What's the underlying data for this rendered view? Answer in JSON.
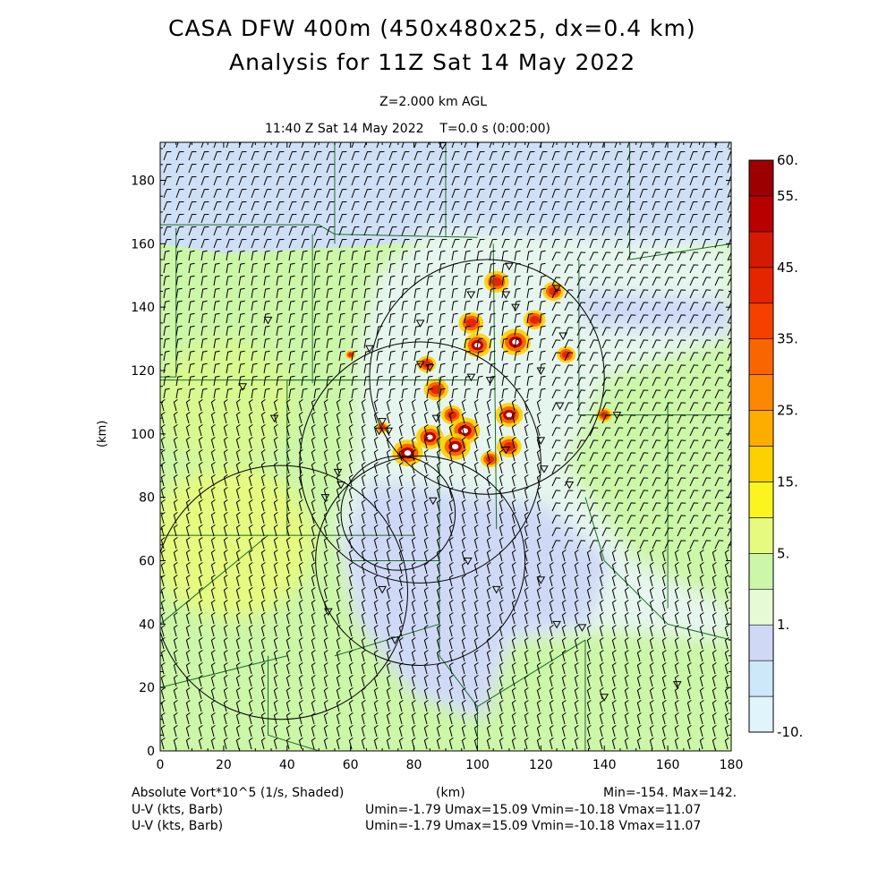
{
  "header": {
    "title_line1": "CASA DFW 400m (450x480x25, dx=0.4 km)",
    "title_line2": "Analysis for 11Z Sat 14 May 2022",
    "level": "Z=2.000 km AGL",
    "time": "11:40 Z Sat 14 May 2022    T=0.0 s (0:00:00)"
  },
  "footer": {
    "field_label": "Absolute Vort*10^5 (1/s, Shaded)",
    "xunit": "(km)",
    "minmax": "Min=-154. Max=142.",
    "wind_label_1": "U-V (kts, Barb)",
    "wind_label_2": "U-V (kts, Barb)",
    "wind_stats_1": "Umin=-1.79 Umax=15.09 Vmin=-10.18 Vmax=11.07",
    "wind_stats_2": "Umin=-1.79 Umax=15.09 Vmin=-10.18 Vmax=11.07"
  },
  "colorbar": {
    "colors": [
      "#e0f4fb",
      "#cde8f8",
      "#cfd9f6",
      "#e6fad6",
      "#ccf6a8",
      "#e6fa80",
      "#fbf41f",
      "#fdd000",
      "#fdac00",
      "#fb8800",
      "#f96600",
      "#f54000",
      "#e52500",
      "#d41a00",
      "#b90000",
      "#9c0000"
    ],
    "labels": [
      {
        "text": "60.",
        "value": 60
      },
      {
        "text": "55.",
        "value": 55
      },
      {
        "text": "45.",
        "value": 45
      },
      {
        "text": "35.",
        "value": 35
      },
      {
        "text": "25.",
        "value": 25
      },
      {
        "text": "15.",
        "value": 15
      },
      {
        "text": "5.",
        "value": 5
      },
      {
        "text": "1.",
        "value": 1
      },
      {
        "text": "-10.",
        "value": -10
      }
    ]
  },
  "chart_data": {
    "type": "heatmap",
    "title": "CASA DFW 400m (450x480x25, dx=0.4 km)",
    "subtitle": "Analysis for 11Z Sat 14 May 2022",
    "xlabel": "(km)",
    "ylabel": "(km)",
    "xlim": [
      0,
      180
    ],
    "ylim": [
      0,
      192
    ],
    "xticks": [
      0,
      20,
      40,
      60,
      80,
      100,
      120,
      140,
      160,
      180
    ],
    "yticks": [
      0,
      20,
      40,
      60,
      80,
      100,
      120,
      140,
      160,
      180
    ],
    "field": "Absolute Vort*10^5 (1/s, Shaded)",
    "min": -154,
    "max": 142,
    "background_regions": [
      {
        "name": "light-blue band north",
        "value": 1,
        "x": [
          0,
          180
        ],
        "y": [
          158,
          192
        ]
      },
      {
        "name": "green region west",
        "value": 8,
        "x": [
          0,
          90
        ],
        "y": [
          0,
          158
        ]
      },
      {
        "name": "yellow-green maximum southwest",
        "value": 14,
        "center": [
          25,
          65
        ]
      },
      {
        "name": "light-blue minimum south-central",
        "value": 1,
        "center": [
          90,
          40
        ]
      }
    ],
    "convective_maxima": [
      {
        "x": 106,
        "y": 148,
        "value": 45
      },
      {
        "x": 124,
        "y": 145,
        "value": 40
      },
      {
        "x": 98,
        "y": 135,
        "value": 45
      },
      {
        "x": 112,
        "y": 129,
        "value": 55
      },
      {
        "x": 118,
        "y": 136,
        "value": 40
      },
      {
        "x": 100,
        "y": 128,
        "value": 50
      },
      {
        "x": 84,
        "y": 122,
        "value": 35
      },
      {
        "x": 87,
        "y": 114,
        "value": 45
      },
      {
        "x": 110,
        "y": 106,
        "value": 50
      },
      {
        "x": 92,
        "y": 106,
        "value": 40
      },
      {
        "x": 96,
        "y": 101,
        "value": 55
      },
      {
        "x": 93,
        "y": 96,
        "value": 55
      },
      {
        "x": 78,
        "y": 94,
        "value": 55
      },
      {
        "x": 85,
        "y": 99,
        "value": 50
      },
      {
        "x": 104,
        "y": 92,
        "value": 35
      },
      {
        "x": 110,
        "y": 96,
        "value": 45
      },
      {
        "x": 140,
        "y": 106,
        "value": 30
      },
      {
        "x": 128,
        "y": 125,
        "value": 35
      },
      {
        "x": 70,
        "y": 102,
        "value": 25
      },
      {
        "x": 60,
        "y": 125,
        "value": 20
      }
    ],
    "radar_range_rings": [
      {
        "center_km": [
          103,
          118
        ],
        "radius_km": 37
      },
      {
        "center_km": [
          82,
          91
        ],
        "radius_km": 38
      },
      {
        "center_km": [
          82,
          60
        ],
        "radius_km": 33
      },
      {
        "center_km": [
          38,
          50
        ],
        "radius_km": 40
      },
      {
        "center_km": [
          75,
          75
        ],
        "radius_km": 18
      }
    ],
    "station_markers_km": [
      [
        89,
        191
      ],
      [
        110,
        153
      ],
      [
        98,
        144
      ],
      [
        109,
        144
      ],
      [
        112,
        140
      ],
      [
        125,
        146
      ],
      [
        34,
        136
      ],
      [
        82,
        135
      ],
      [
        127,
        131
      ],
      [
        66,
        127
      ],
      [
        82,
        122
      ],
      [
        85,
        121
      ],
      [
        120,
        120
      ],
      [
        104,
        117
      ],
      [
        98,
        118
      ],
      [
        126,
        109
      ],
      [
        144,
        106
      ],
      [
        70,
        104
      ],
      [
        87,
        105
      ],
      [
        69,
        101
      ],
      [
        72,
        101
      ],
      [
        109,
        95
      ],
      [
        120,
        98
      ],
      [
        121,
        89
      ],
      [
        57,
        84
      ],
      [
        129,
        84
      ],
      [
        56,
        88
      ],
      [
        52,
        80
      ],
      [
        26,
        115
      ],
      [
        36,
        105
      ],
      [
        86,
        79
      ],
      [
        97,
        60
      ],
      [
        53,
        44
      ],
      [
        106,
        51
      ],
      [
        120,
        54
      ],
      [
        70,
        51
      ],
      [
        125,
        40
      ],
      [
        133,
        39
      ],
      [
        74,
        35
      ],
      [
        140,
        17
      ],
      [
        163,
        21
      ]
    ],
    "wind_barbs": {
      "units": "kts",
      "umin": -1.79,
      "umax": 15.09,
      "vmin": -10.18,
      "vmax": 11.07
    }
  }
}
